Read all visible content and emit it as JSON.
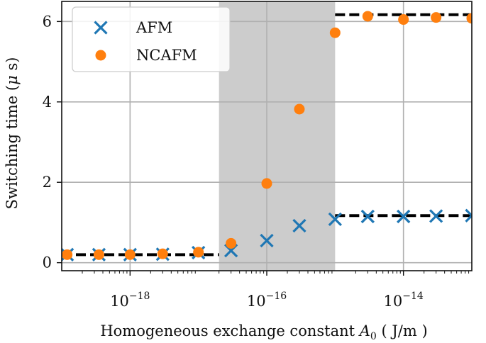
{
  "chart_data": {
    "type": "scatter",
    "x_scale": "log",
    "xlim": [
      1e-19,
      1e-13
    ],
    "ylim": [
      -0.2,
      6.5
    ],
    "grid": true,
    "legend_position": "top-left",
    "xlabel": {
      "prefix": "Homogeneous exchange constant ",
      "symbol": "A",
      "subscript": "0",
      "unit": " ( J/m )"
    },
    "ylabel": {
      "prefix": "Switching time (",
      "symbol": "μ",
      "suffix": " s)"
    },
    "x_ticks": [
      {
        "value": 1e-18,
        "base": "10",
        "exp": "−18"
      },
      {
        "value": 1e-16,
        "base": "10",
        "exp": "−16"
      },
      {
        "value": 1e-14,
        "base": "10",
        "exp": "−14"
      }
    ],
    "y_ticks": [
      {
        "value": 0,
        "label": "0"
      },
      {
        "value": 2,
        "label": "2"
      },
      {
        "value": 4,
        "label": "4"
      },
      {
        "value": 6,
        "label": "6"
      }
    ],
    "shaded_region": {
      "x": [
        2e-17,
        1e-15
      ]
    },
    "reference_lines": [
      {
        "x": [
          1e-19,
          2e-17
        ],
        "y": 0.2
      },
      {
        "x": [
          1e-15,
          1e-13
        ],
        "y": 6.17
      },
      {
        "x": [
          1e-15,
          1e-13
        ],
        "y": 1.17
      }
    ],
    "series": [
      {
        "name": "AFM",
        "marker": "x",
        "color": "#1f77b4",
        "x": [
          1.2e-19,
          3.5e-19,
          1e-18,
          3e-18,
          1e-17,
          3e-17,
          1e-16,
          3e-16,
          1e-15,
          3e-15,
          1e-14,
          3e-14,
          1e-13
        ],
        "y": [
          0.2,
          0.2,
          0.2,
          0.21,
          0.25,
          0.3,
          0.55,
          0.92,
          1.08,
          1.15,
          1.15,
          1.16,
          1.17
        ]
      },
      {
        "name": "NCAFM",
        "marker": "o",
        "color": "#ff7f0e",
        "x": [
          1.2e-19,
          3.5e-19,
          1e-18,
          3e-18,
          1e-17,
          3e-17,
          1e-16,
          3e-16,
          1e-15,
          3e-15,
          1e-14,
          3e-14,
          1e-13
        ],
        "y": [
          0.2,
          0.2,
          0.2,
          0.22,
          0.26,
          0.48,
          1.97,
          3.82,
          5.72,
          6.13,
          6.05,
          6.1,
          6.08
        ]
      }
    ]
  }
}
